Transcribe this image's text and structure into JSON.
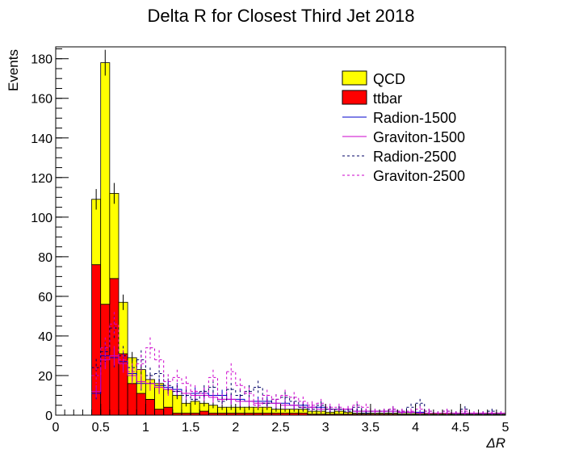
{
  "chart_data": {
    "type": "histogram",
    "title": "Delta R for Closest Third Jet 2018",
    "xlabel": "ΔR",
    "ylabel": "Events",
    "xlim": [
      0,
      5
    ],
    "ylim": [
      0,
      186
    ],
    "bin_edges": [
      0,
      0.1,
      0.2,
      0.3,
      0.4,
      0.5,
      0.6,
      0.7,
      0.8,
      0.9,
      1.0,
      1.1,
      1.2,
      1.3,
      1.4,
      1.5,
      1.6,
      1.7,
      1.8,
      1.9,
      2.0,
      2.1,
      2.2,
      2.3,
      2.4,
      2.5,
      2.6,
      2.7,
      2.8,
      2.9,
      3.0,
      3.1,
      3.2,
      3.3,
      3.4,
      3.5,
      3.6,
      3.7,
      3.8,
      3.9,
      4.0,
      4.1,
      4.2,
      4.3,
      4.4,
      4.5,
      4.6,
      4.7,
      4.8,
      4.9,
      5.0
    ],
    "x_ticks": [
      0,
      0.5,
      1,
      1.5,
      2,
      2.5,
      3,
      3.5,
      4,
      4.5,
      5
    ],
    "x_tick_labels": [
      "0",
      "0.5",
      "1",
      "1.5",
      "2",
      "2.5",
      "3",
      "3.5",
      "4",
      "4.5",
      "5"
    ],
    "y_ticks": [
      0,
      20,
      40,
      60,
      80,
      100,
      120,
      140,
      160,
      180
    ],
    "y_tick_labels": [
      "0",
      "20",
      "40",
      "60",
      "80",
      "100",
      "120",
      "140",
      "160",
      "180"
    ],
    "stacked": [
      {
        "name": "ttbar",
        "fill": "#ff0000",
        "values": [
          0,
          0,
          0,
          0,
          76,
          56,
          69,
          31,
          16,
          11,
          8,
          3,
          4,
          1,
          1,
          1,
          2,
          1,
          1,
          1,
          1,
          1,
          1,
          1,
          1,
          1,
          1,
          1,
          0.5,
          0.5,
          0.5,
          0.5,
          0.5,
          0.5,
          0.5,
          0.5,
          0.5,
          0.5,
          0.3,
          0.3,
          0.3,
          0.3,
          0.3,
          0.3,
          0.2,
          0.2,
          0.2,
          0.2,
          0.2,
          0.2
        ]
      },
      {
        "name": "QCD",
        "fill": "#ffff00",
        "values": [
          0,
          0,
          0,
          0,
          33,
          122,
          43,
          26,
          13,
          12,
          10,
          13,
          9,
          9,
          5,
          6,
          4,
          4,
          3,
          3,
          3,
          3,
          3,
          3,
          2,
          2,
          2,
          2,
          1.5,
          1.5,
          1,
          1.5,
          1,
          0.5,
          0.5,
          0.5,
          0.5,
          0.5,
          0.5,
          0.5,
          0.5,
          0.5,
          0.5,
          0.5,
          0.3,
          0.3,
          0.3,
          0.3,
          0.3,
          0.3
        ]
      }
    ],
    "overlays": [
      {
        "name": "Radion-1500",
        "color": "#0000cc",
        "dashed": false,
        "values": [
          0,
          0,
          0,
          0,
          11,
          30,
          29,
          27,
          21,
          16,
          16,
          15,
          14,
          13,
          11,
          11,
          11,
          10,
          10,
          8,
          8,
          7,
          7,
          7,
          6,
          6,
          5,
          5,
          4,
          4,
          3,
          3,
          3,
          2,
          2,
          2,
          2,
          2,
          1.5,
          1.5,
          1.5,
          1,
          1,
          1,
          1,
          1,
          1,
          1,
          1,
          1
        ]
      },
      {
        "name": "Graviton-1500",
        "color": "#cc00cc",
        "dashed": false,
        "values": [
          0,
          0,
          0,
          0,
          12,
          28,
          30,
          26,
          20,
          17,
          16,
          14,
          13,
          12,
          11,
          10,
          10,
          9,
          8,
          8,
          7,
          7,
          6,
          6,
          6,
          5,
          5,
          4,
          4,
          3,
          3,
          3,
          3,
          2,
          2,
          2,
          2,
          2,
          1.5,
          1.5,
          1,
          1,
          1,
          1,
          1,
          1,
          1,
          1,
          1,
          1
        ]
      },
      {
        "name": "Radion-2500",
        "color": "#000066",
        "dashed": true,
        "values": [
          0,
          0,
          0,
          0,
          24,
          32,
          44,
          30,
          24,
          28,
          20,
          21,
          15,
          12,
          10,
          8,
          12,
          14,
          7,
          13,
          10,
          12,
          14,
          6,
          8,
          9,
          7,
          4,
          3,
          5,
          3,
          3,
          2,
          4,
          1,
          2,
          2,
          3,
          2,
          4,
          6,
          2,
          1,
          2,
          1,
          3,
          0,
          1,
          2,
          1
        ]
      },
      {
        "name": "Graviton-2500",
        "color": "#cc00cc",
        "dashed": true,
        "values": [
          0,
          0,
          0,
          0,
          20,
          34,
          46,
          28,
          22,
          26,
          34,
          28,
          17,
          19,
          16,
          12,
          11,
          19,
          8,
          22,
          15,
          11,
          5,
          10,
          8,
          10,
          9,
          7,
          5,
          6,
          4,
          4,
          3,
          5,
          4,
          2,
          2,
          3,
          2,
          2,
          3,
          2,
          1,
          2,
          1,
          2,
          1,
          1,
          1,
          1
        ]
      }
    ],
    "legend": {
      "position": "top-right",
      "entries": [
        {
          "label": "QCD",
          "style": "fill",
          "color": "#ffff00"
        },
        {
          "label": "ttbar",
          "style": "fill",
          "color": "#ff0000"
        },
        {
          "label": "Radion-1500",
          "style": "line",
          "color": "#0000cc",
          "dashed": false
        },
        {
          "label": "Graviton-1500",
          "style": "line",
          "color": "#cc00cc",
          "dashed": false
        },
        {
          "label": "Radion-2500",
          "style": "line",
          "color": "#000066",
          "dashed": true
        },
        {
          "label": "Graviton-2500",
          "style": "line",
          "color": "#cc00cc",
          "dashed": true
        }
      ]
    }
  }
}
